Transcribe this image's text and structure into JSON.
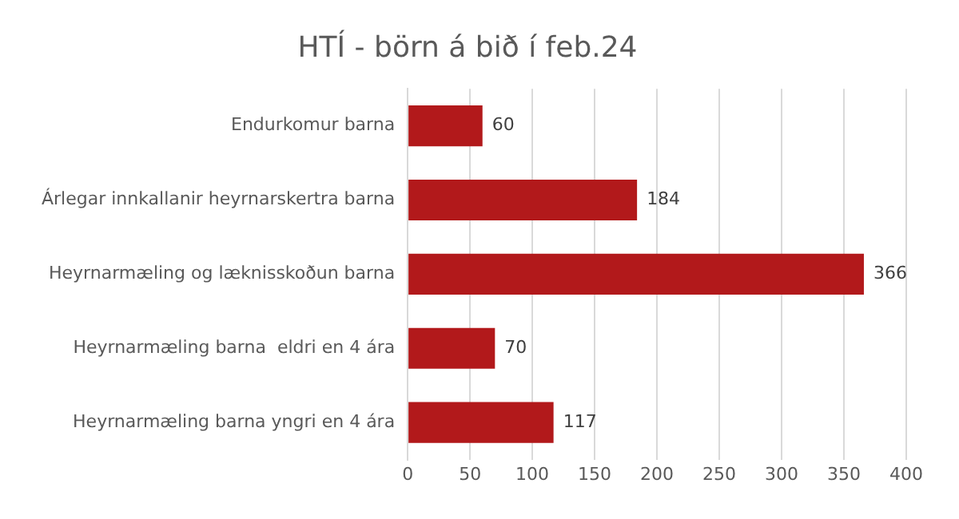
{
  "chart_data": {
    "type": "bar",
    "orientation": "horizontal",
    "title": "HTÍ - börn á bið í feb.24",
    "categories": [
      "Endurkomur barna",
      "Árlegar innkallanir heyrnarskertra barna",
      "Heyrnarmæling og læknisskoðun barna",
      "Heyrnarmæling barna  eldri en 4 ára",
      "Heyrnarmæling barna yngri en 4 ára"
    ],
    "values": [
      60,
      184,
      366,
      70,
      117
    ],
    "color": "#b2191b",
    "xlim": [
      0,
      400
    ],
    "xticks": [
      0,
      50,
      100,
      150,
      200,
      250,
      300,
      350,
      400
    ],
    "grid": "x",
    "data_labels": true,
    "legend": false
  }
}
